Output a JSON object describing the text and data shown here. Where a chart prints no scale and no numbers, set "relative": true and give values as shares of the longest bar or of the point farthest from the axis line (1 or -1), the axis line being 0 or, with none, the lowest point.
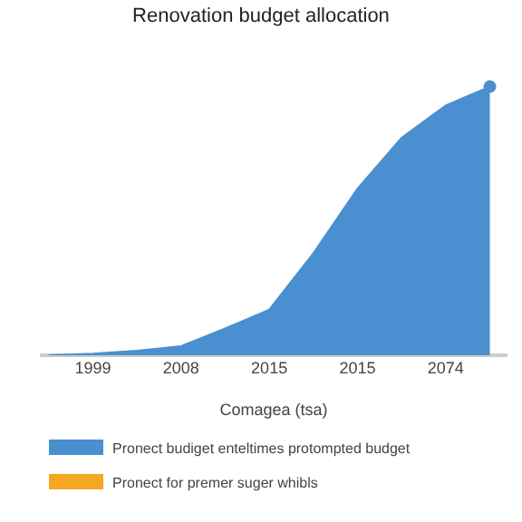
{
  "chart_data": {
    "type": "area",
    "title": "Renovation budget allocation",
    "xlabel": "Comagea (tsa)",
    "relative": true,
    "legend": "bottom",
    "marker": "none",
    "categories": [
      null,
      "1999",
      null,
      "2008",
      null,
      "2015",
      null,
      "2015",
      null,
      "2074",
      null
    ],
    "series": [
      {
        "name": "Pronect budiget enteltimes protompted budget",
        "color": "#4a90d0",
        "values": [
          0.0,
          0.006,
          0.017,
          0.034,
          0.1,
          0.17,
          0.38,
          0.62,
          0.81,
          0.93,
          1.0
        ]
      },
      {
        "name": "Pronect for premer suger whibls",
        "color": "#f5a623",
        "values": [
          null,
          null,
          null,
          null,
          null,
          null,
          null,
          null,
          null,
          null,
          null
        ]
      },
      {
        "type": "scatter",
        "marker": "circle",
        "color": "#4a90d0",
        "values": [
          null,
          null,
          null,
          null,
          null,
          null,
          null,
          null,
          null,
          null,
          1.0
        ]
      }
    ]
  }
}
